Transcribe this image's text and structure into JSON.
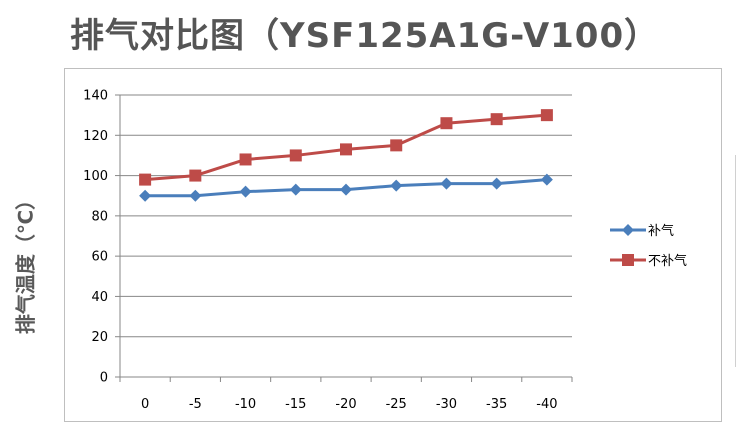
{
  "page": {
    "title": "排气对比图（YSF125A1G-V100）",
    "y_axis_title": "排气温度（℃）"
  },
  "chart_data": {
    "type": "line",
    "categories": [
      "0",
      "-5",
      "-10",
      "-15",
      "-20",
      "-25",
      "-30",
      "-35",
      "-40"
    ],
    "ylim": [
      0,
      140
    ],
    "yticks": [
      0,
      20,
      40,
      60,
      80,
      100,
      120,
      140
    ],
    "grid": true,
    "legend_position": "right",
    "series": [
      {
        "name": "补气",
        "values": [
          90,
          90,
          92,
          93,
          93,
          95,
          96,
          96,
          98
        ],
        "color": "#4a7ebb",
        "marker": "diamond"
      },
      {
        "name": "不补气",
        "values": [
          98,
          100,
          108,
          110,
          113,
          115,
          126,
          128,
          130
        ],
        "color": "#be4b48",
        "marker": "square"
      }
    ]
  }
}
